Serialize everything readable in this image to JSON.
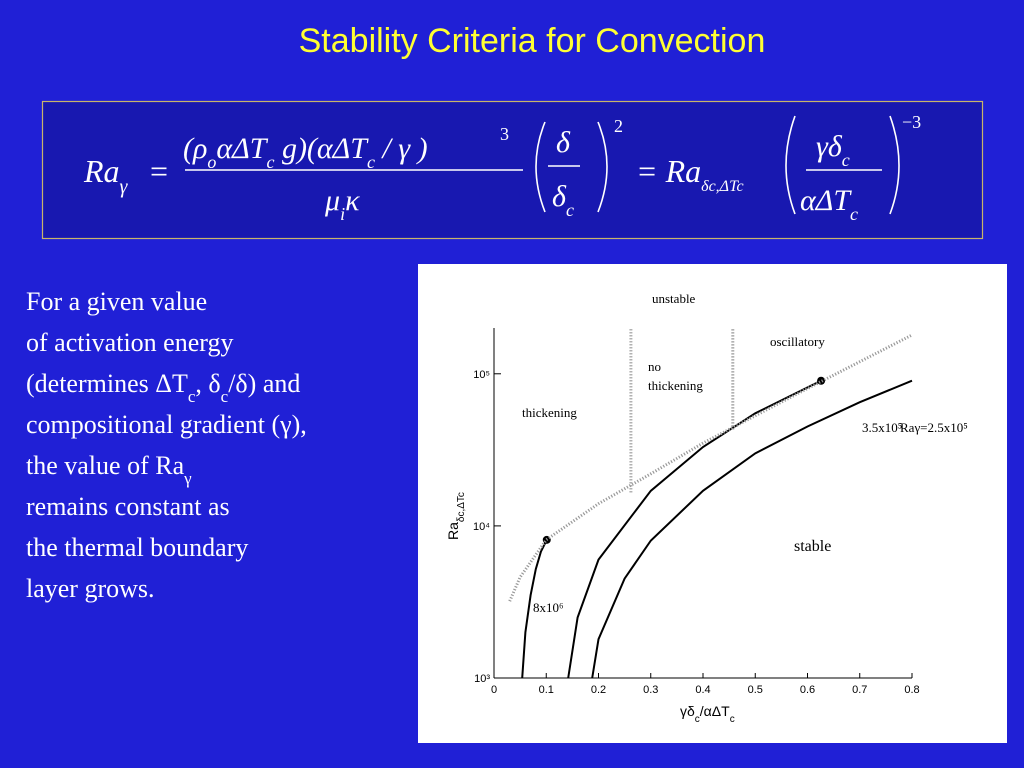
{
  "title": "Stability Criteria for Convection",
  "equation": {
    "lhs": [
      "Ra",
      "γ"
    ],
    "equals": "=",
    "numerator": [
      "(ρ",
      "o",
      "αΔT",
      "c",
      " g)(αΔT",
      "c",
      " / γ )"
    ],
    "numerator_exponent": "3",
    "denominator": [
      "μ",
      "i",
      "κ"
    ],
    "ratio_numerator": [
      "δ"
    ],
    "ratio_denominator": [
      "δ",
      "c"
    ],
    "ratio_exponent": "2",
    "rhs": [
      "= Ra",
      "δc,ΔTc"
    ],
    "rhs_numerator": [
      "γδ",
      "c"
    ],
    "rhs_denominator": [
      "αΔT",
      "c"
    ],
    "rhs_exponent": "−3"
  },
  "paragraph": [
    [
      "For a given value"
    ],
    [
      "of activation energy"
    ],
    [
      "(determines ΔT",
      "c",
      ", δ",
      "c",
      "/δ) and"
    ],
    [
      "compositional gradient (γ),"
    ],
    [
      "the value of Ra",
      "γ"
    ],
    [
      "remains constant as"
    ],
    [
      "the thermal boundary"
    ],
    [
      "layer grows."
    ]
  ],
  "chart_data": {
    "type": "line",
    "x_label": [
      "γδ",
      "c",
      "/αΔT",
      "c"
    ],
    "y_label": [
      "Ra",
      "δc,ΔTc"
    ],
    "xlim": [
      0,
      0.8
    ],
    "xticks": [
      0,
      0.1,
      0.2,
      0.3,
      0.4,
      0.5,
      0.6,
      0.7,
      0.8
    ],
    "ylim": [
      1000,
      200000
    ],
    "yticks": [
      {
        "value": 1000,
        "label": "10³"
      },
      {
        "value": 10000,
        "label": "10⁴"
      },
      {
        "value": 100000,
        "label": "10⁵"
      }
    ],
    "log_y": true,
    "series": [
      {
        "name": "8x10⁶",
        "color": "#000000",
        "style": "solid",
        "marker_end": true,
        "x": [
          0.054,
          0.06,
          0.07,
          0.08,
          0.09,
          0.101
        ],
        "values": [
          1000,
          2000,
          3500,
          5200,
          6800,
          8100
        ]
      },
      {
        "name": "3.5x10⁵",
        "color": "#000000",
        "style": "solid",
        "marker_end": true,
        "x": [
          0.142,
          0.16,
          0.2,
          0.3,
          0.4,
          0.5,
          0.626
        ],
        "values": [
          1000,
          2500,
          6000,
          17000,
          33000,
          55000,
          90000
        ]
      },
      {
        "name": "Raγ=2.5x10⁵",
        "color": "#000000",
        "style": "solid",
        "marker_end": false,
        "x": [
          0.188,
          0.2,
          0.25,
          0.3,
          0.4,
          0.5,
          0.6,
          0.7,
          0.8
        ],
        "values": [
          1000,
          1800,
          4500,
          8000,
          17000,
          30000,
          45000,
          65000,
          90000
        ]
      },
      {
        "color": "#999999",
        "style": "dotted",
        "marker_end": false,
        "x": [
          0.03,
          0.05,
          0.1,
          0.2,
          0.3,
          0.4,
          0.5,
          0.6,
          0.7,
          0.8
        ],
        "values": [
          3200,
          4600,
          8100,
          14000,
          22000,
          35000,
          53000,
          80000,
          120000,
          180000
        ]
      },
      {
        "color": "#999999",
        "style": "dotted",
        "marker_end": false,
        "x": [
          0.262,
          0.262
        ],
        "values": [
          16600,
          200000
        ]
      },
      {
        "color": "#999999",
        "style": "dotted",
        "marker_end": false,
        "x": [
          0.457,
          0.457
        ],
        "values": [
          43000,
          200000
        ]
      }
    ],
    "annotations": [
      "unstable",
      "no",
      "thickening",
      "thickening",
      "oscillatory",
      "stable"
    ]
  }
}
